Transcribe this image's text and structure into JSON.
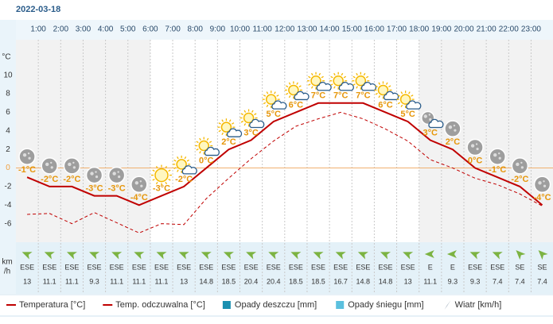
{
  "chart_data": {
    "type": "line",
    "title": "2022-03-18",
    "categories": [
      null,
      "1:00",
      "2:00",
      "3:00",
      "4:00",
      "5:00",
      "6:00",
      "7:00",
      "8:00",
      "9:00",
      "10:00",
      "11:00",
      "12:00",
      "13:00",
      "14:00",
      "15:00",
      "16:00",
      "17:00",
      "18:00",
      "19:00",
      "20:00",
      "21:00",
      "22:00",
      "23:00"
    ],
    "ylabel": "°C",
    "ylim": [
      -8,
      14
    ],
    "yticks": [
      -6,
      -4,
      -2,
      0,
      2,
      4,
      6,
      8,
      10
    ],
    "grid": "vertical",
    "series": [
      {
        "name": "Temperatura [°C]",
        "color": "#c00000",
        "values": [
          -1,
          -2,
          -2,
          -3,
          -3,
          -4,
          -3,
          -2,
          0,
          2,
          3,
          5,
          6,
          7,
          7,
          7,
          6,
          5,
          3,
          2,
          0,
          -1,
          -2,
          -4
        ],
        "value_labels": [
          "-1°C",
          "-2°C",
          "-2°C",
          "-3°C",
          "-3°C",
          "-4°C",
          "-3°C",
          "-2°C",
          "0°C",
          "2°C",
          "3°C",
          "5°C",
          "6°C",
          "7°C",
          "7°C",
          "7°C",
          "6°C",
          "5°C",
          "3°C",
          "2°C",
          "0°C",
          "-1°C",
          "-2°C",
          "-4°C"
        ]
      },
      {
        "name": "Temp. odczuwalna [°C]",
        "color": "#c00000",
        "dashed": true,
        "values": [
          -5,
          -4.9,
          -6,
          -4.8,
          -5.9,
          -7,
          -6,
          -6.1,
          -3.3,
          -1.1,
          1,
          2.9,
          4.5,
          5.3,
          6,
          5.3,
          4.2,
          2.9,
          0.9,
          0,
          -1.1,
          -1.8,
          -2.8,
          -4.1
        ]
      }
    ],
    "icons": [
      "moon",
      "moon",
      "moon",
      "moon",
      "moon",
      "moon",
      "sun",
      "sun-cloud",
      "sun-cloud",
      "sun-cloud",
      "sun-cloud",
      "sun-cloud",
      "sun-cloud",
      "sun-cloud",
      "sun-cloud",
      "sun-cloud",
      "sun-cloud",
      "sun-cloud",
      "moon-cloud",
      "moon",
      "moon",
      "moon",
      "moon",
      "moon"
    ],
    "wind": {
      "unit_top": "km",
      "unit_bottom": "/h",
      "color": "#7cb342",
      "directions": [
        "ESE",
        "ESE",
        "ESE",
        "ESE",
        "ESE",
        "ESE",
        "ESE",
        "ESE",
        "ESE",
        "ESE",
        "ESE",
        "ESE",
        "ESE",
        "ESE",
        "ESE",
        "ESE",
        "ESE",
        "ESE",
        "E",
        "E",
        "ESE",
        "ESE",
        "SE",
        "SE"
      ],
      "speeds": [
        13,
        11.1,
        11.1,
        9.3,
        11.1,
        11.1,
        11.1,
        13,
        14.8,
        18.5,
        20.4,
        20.4,
        18.5,
        18.5,
        16.7,
        14.8,
        14.8,
        13,
        11.1,
        9.3,
        9.3,
        7.4,
        7.4,
        7.4
      ]
    },
    "legend_extra": [
      {
        "name": "Opady deszczu [mm]",
        "color": "#1a8fb0",
        "kind": "box"
      },
      {
        "name": "Opady śniegu [mm]",
        "color": "#5bc0de",
        "kind": "box"
      },
      {
        "name": "Wiatr [km/h]",
        "color": "#2a4a6a",
        "kind": "arrow"
      }
    ]
  }
}
